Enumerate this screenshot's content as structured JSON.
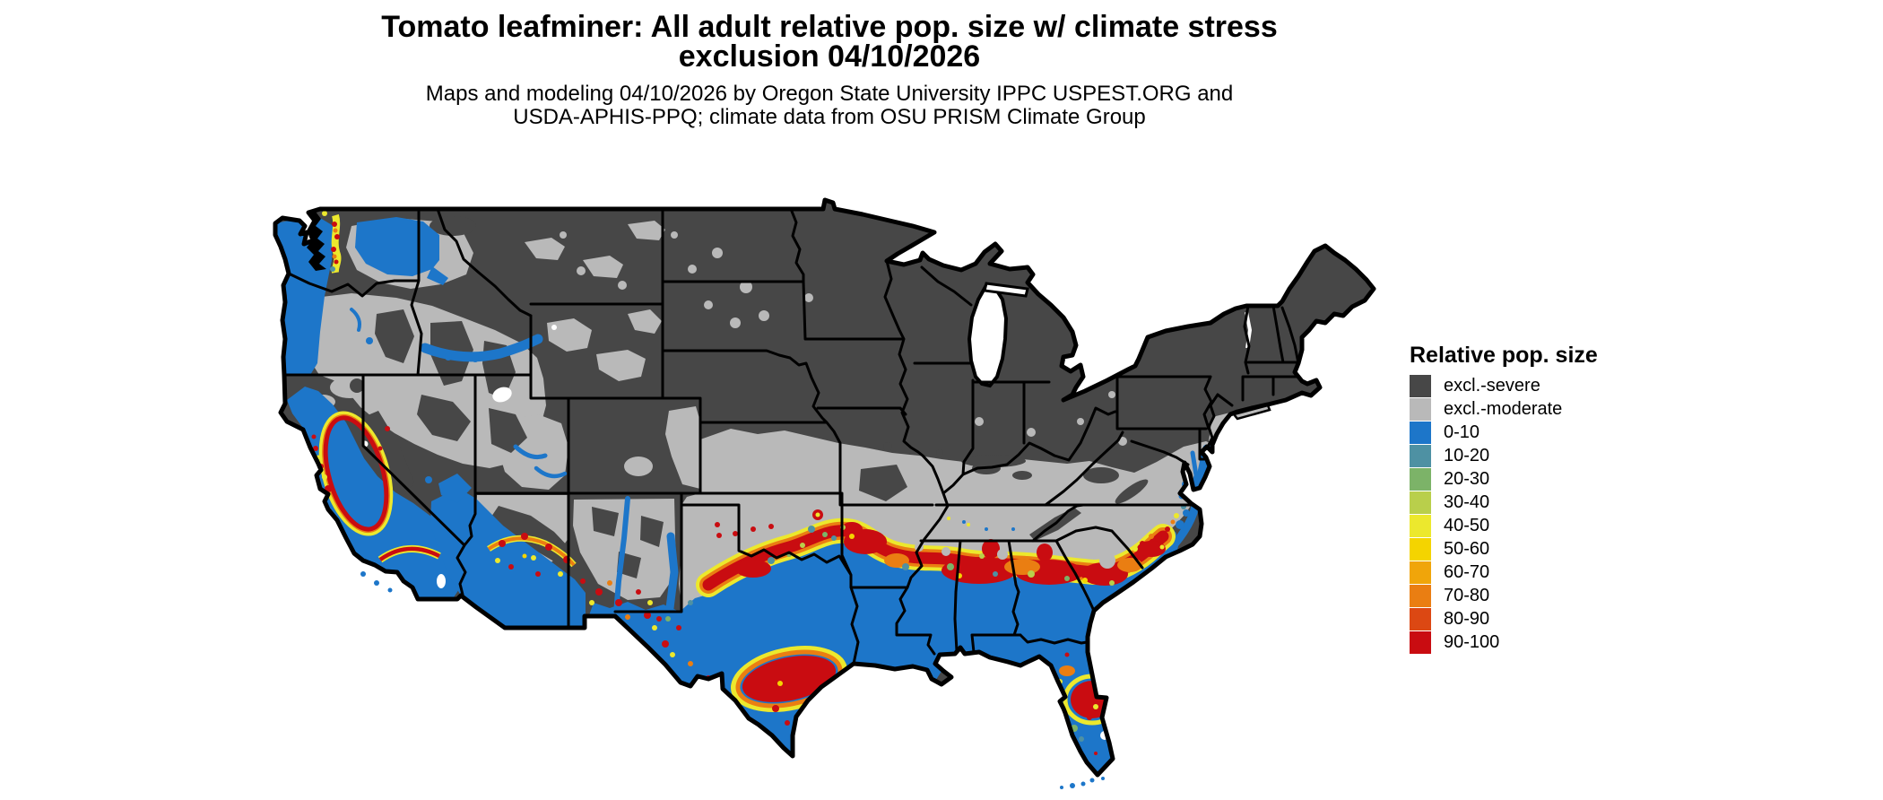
{
  "title": {
    "line1": "Tomato leafminer: All adult relative pop. size w/ climate stress",
    "line2": "exclusion 04/10/2026"
  },
  "subtitle": {
    "line1": "Maps and modeling 04/10/2026 by Oregon State University IPPC USPEST.ORG and",
    "line2": "USDA-APHIS-PPQ; climate data from OSU PRISM Climate Group"
  },
  "legend": {
    "title": "Relative pop. size",
    "items": [
      {
        "label": "excl.-severe",
        "color": "#474747"
      },
      {
        "label": "excl.-moderate",
        "color": "#b9b9b9"
      },
      {
        "label": "0-10",
        "color": "#1d76c9"
      },
      {
        "label": "10-20",
        "color": "#4e91a3"
      },
      {
        "label": "20-30",
        "color": "#7cb368"
      },
      {
        "label": "30-40",
        "color": "#b9cf4b"
      },
      {
        "label": "40-50",
        "color": "#ece82d"
      },
      {
        "label": "50-60",
        "color": "#f4d400"
      },
      {
        "label": "60-70",
        "color": "#f0a50a"
      },
      {
        "label": "70-80",
        "color": "#ea7e12"
      },
      {
        "label": "80-90",
        "color": "#dc4813"
      },
      {
        "label": "90-100",
        "color": "#c90c11"
      }
    ]
  }
}
